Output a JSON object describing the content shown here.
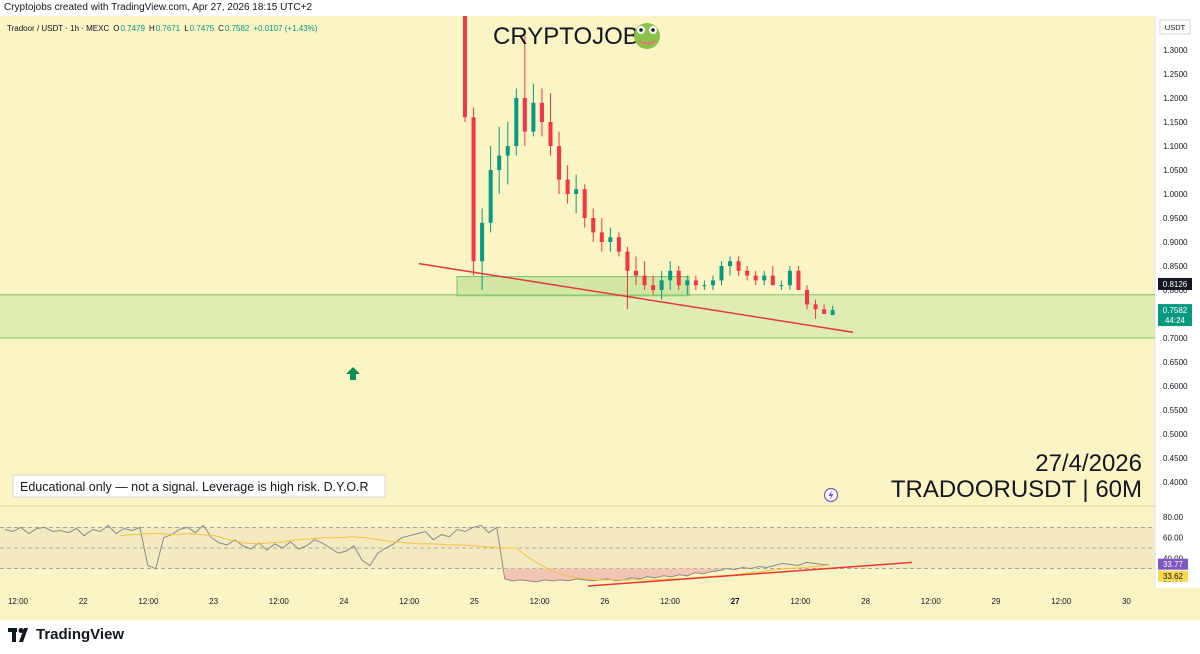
{
  "header": {
    "attribution": "Cryptojobs created with TradingView.com, Apr 27, 2026 18:15 UTC+2"
  },
  "legend": {
    "symbol": "Tradoor / USDT · 1h · MEXC",
    "o_label": "O",
    "o_value": "0.7479",
    "h_label": "H",
    "h_value": "0.7671",
    "l_label": "L",
    "l_value": "0.7475",
    "c_label": "C",
    "c_value": "0.7582",
    "change": "+0.0107 (+1.43%)"
  },
  "overlay": {
    "brand": "CRYPTOJOBS",
    "brand_icon": "frog-emoji-icon",
    "date": "27/4/2026",
    "ticker": "TRADOORUSDT | 60M",
    "disclaimer": "Educational only — not a signal. Leverage is high risk. D.Y.O.R"
  },
  "price_scale": {
    "currency": "USDT",
    "last_price": "0.7582",
    "countdown": "44:24",
    "level_tag": "0.8126",
    "rsi_tag_1": "33.77",
    "rsi_tag_2": "33.62"
  },
  "footer": {
    "brand": "TradingView"
  },
  "colors": {
    "background": "#fbf4c4",
    "bull": "#089981",
    "bear": "#f23645",
    "zone": "#c8e6a6",
    "trendline": "#e53935",
    "rsi_line": "#8a8a8a",
    "rsi_ma": "#f0c53a"
  },
  "chart_data": [
    {
      "type": "candlestick",
      "symbol": "Tradoor / USDT",
      "interval": "1h",
      "ylim": [
        0.4,
        1.35
      ],
      "y_ticks": [
        "1.3000",
        "1.2500",
        "1.2000",
        "1.1500",
        "1.1000",
        "1.0500",
        "1.0000",
        "0.9500",
        "0.9000",
        "0.8500",
        "0.8000",
        "0.7500",
        "0.7000",
        "0.6500",
        "0.6000",
        "0.5500",
        "0.5000",
        "0.4500",
        "0.4000"
      ],
      "x_ticks": [
        "12:00",
        "22",
        "12:00",
        "23",
        "12:00",
        "24",
        "12:00",
        "25",
        "12:00",
        "26",
        "12:00",
        "27",
        "12:00",
        "28",
        "12:00",
        "29",
        "12:00",
        "30"
      ],
      "candles": [
        {
          "o": 1.55,
          "h": 1.65,
          "l": 1.15,
          "c": 1.16
        },
        {
          "o": 1.16,
          "h": 1.18,
          "l": 0.83,
          "c": 0.86
        },
        {
          "o": 0.86,
          "h": 0.97,
          "l": 0.8,
          "c": 0.94
        },
        {
          "o": 0.94,
          "h": 1.1,
          "l": 0.92,
          "c": 1.05
        },
        {
          "o": 1.05,
          "h": 1.14,
          "l": 1.0,
          "c": 1.08
        },
        {
          "o": 1.08,
          "h": 1.15,
          "l": 1.02,
          "c": 1.1
        },
        {
          "o": 1.1,
          "h": 1.22,
          "l": 1.08,
          "c": 1.2
        },
        {
          "o": 1.2,
          "h": 1.33,
          "l": 1.1,
          "c": 1.13
        },
        {
          "o": 1.13,
          "h": 1.23,
          "l": 1.12,
          "c": 1.19
        },
        {
          "o": 1.19,
          "h": 1.22,
          "l": 1.12,
          "c": 1.15
        },
        {
          "o": 1.15,
          "h": 1.21,
          "l": 1.08,
          "c": 1.1
        },
        {
          "o": 1.1,
          "h": 1.13,
          "l": 1.0,
          "c": 1.03
        },
        {
          "o": 1.03,
          "h": 1.06,
          "l": 0.98,
          "c": 1.0
        },
        {
          "o": 1.0,
          "h": 1.04,
          "l": 0.96,
          "c": 1.01
        },
        {
          "o": 1.01,
          "h": 1.02,
          "l": 0.93,
          "c": 0.95
        },
        {
          "o": 0.95,
          "h": 0.97,
          "l": 0.9,
          "c": 0.92
        },
        {
          "o": 0.92,
          "h": 0.95,
          "l": 0.88,
          "c": 0.9
        },
        {
          "o": 0.9,
          "h": 0.93,
          "l": 0.88,
          "c": 0.91
        },
        {
          "o": 0.91,
          "h": 0.92,
          "l": 0.87,
          "c": 0.88
        },
        {
          "o": 0.88,
          "h": 0.89,
          "l": 0.76,
          "c": 0.84
        },
        {
          "o": 0.84,
          "h": 0.87,
          "l": 0.81,
          "c": 0.83
        },
        {
          "o": 0.83,
          "h": 0.86,
          "l": 0.8,
          "c": 0.81
        },
        {
          "o": 0.81,
          "h": 0.83,
          "l": 0.79,
          "c": 0.8
        },
        {
          "o": 0.8,
          "h": 0.84,
          "l": 0.78,
          "c": 0.82
        },
        {
          "o": 0.82,
          "h": 0.86,
          "l": 0.8,
          "c": 0.84
        },
        {
          "o": 0.84,
          "h": 0.85,
          "l": 0.8,
          "c": 0.81
        },
        {
          "o": 0.81,
          "h": 0.83,
          "l": 0.79,
          "c": 0.82
        },
        {
          "o": 0.82,
          "h": 0.83,
          "l": 0.8,
          "c": 0.81
        },
        {
          "o": 0.81,
          "h": 0.82,
          "l": 0.8,
          "c": 0.81
        },
        {
          "o": 0.81,
          "h": 0.83,
          "l": 0.8,
          "c": 0.82
        },
        {
          "o": 0.82,
          "h": 0.86,
          "l": 0.81,
          "c": 0.85
        },
        {
          "o": 0.85,
          "h": 0.87,
          "l": 0.83,
          "c": 0.86
        },
        {
          "o": 0.86,
          "h": 0.87,
          "l": 0.83,
          "c": 0.84
        },
        {
          "o": 0.84,
          "h": 0.85,
          "l": 0.82,
          "c": 0.83
        },
        {
          "o": 0.83,
          "h": 0.84,
          "l": 0.81,
          "c": 0.82
        },
        {
          "o": 0.82,
          "h": 0.84,
          "l": 0.81,
          "c": 0.83
        },
        {
          "o": 0.83,
          "h": 0.85,
          "l": 0.81,
          "c": 0.81
        },
        {
          "o": 0.81,
          "h": 0.82,
          "l": 0.8,
          "c": 0.81
        },
        {
          "o": 0.81,
          "h": 0.85,
          "l": 0.8,
          "c": 0.84
        },
        {
          "o": 0.84,
          "h": 0.85,
          "l": 0.8,
          "c": 0.8
        },
        {
          "o": 0.8,
          "h": 0.81,
          "l": 0.76,
          "c": 0.77
        },
        {
          "o": 0.77,
          "h": 0.78,
          "l": 0.74,
          "c": 0.76
        },
        {
          "o": 0.76,
          "h": 0.77,
          "l": 0.75,
          "c": 0.75
        },
        {
          "o": 0.7479,
          "h": 0.7671,
          "l": 0.7475,
          "c": 0.7582
        }
      ],
      "support_zone": [
        0.7,
        0.79
      ],
      "trendline": [
        [
          0.855,
          0.0
        ],
        [
          0.712,
          1.0
        ]
      ]
    },
    {
      "type": "line",
      "name": "RSI",
      "ylim": [
        15,
        85
      ],
      "y_ticks": [
        "80.00",
        "60.00",
        "40.00",
        "20.00"
      ],
      "rsi": [
        68,
        66,
        70,
        64,
        69,
        70,
        66,
        67,
        65,
        69,
        62,
        68,
        66,
        72,
        64,
        69,
        67,
        70,
        33,
        30,
        60,
        63,
        68,
        70,
        65,
        72,
        60,
        55,
        53,
        58,
        52,
        49,
        55,
        48,
        54,
        50,
        56,
        49,
        52,
        58,
        55,
        50,
        45,
        47,
        52,
        38,
        33,
        45,
        50,
        54,
        60,
        62,
        64,
        66,
        58,
        63,
        61,
        68,
        66,
        70,
        72,
        65,
        70,
        20,
        18,
        19,
        18,
        17,
        19,
        18,
        19,
        18,
        20,
        19,
        18,
        19,
        20,
        18,
        19,
        21,
        20,
        22,
        21,
        23,
        22,
        24,
        23,
        26,
        25,
        27,
        28,
        30,
        29,
        31,
        30,
        32,
        31,
        33,
        35,
        34,
        33,
        36,
        35,
        34,
        33.77
      ],
      "rsi_ma": [
        62,
        63,
        64,
        64,
        63,
        64,
        63,
        62,
        58,
        55,
        54,
        55,
        56,
        58,
        59,
        60,
        60,
        61,
        60,
        58,
        56,
        55,
        54,
        54,
        53,
        53,
        52,
        51,
        50,
        50,
        40,
        32,
        26,
        22,
        20,
        19,
        19,
        19,
        19,
        19,
        20,
        20,
        21,
        22,
        23,
        24,
        26,
        27,
        29,
        30,
        31,
        32,
        33.62
      ]
    }
  ]
}
